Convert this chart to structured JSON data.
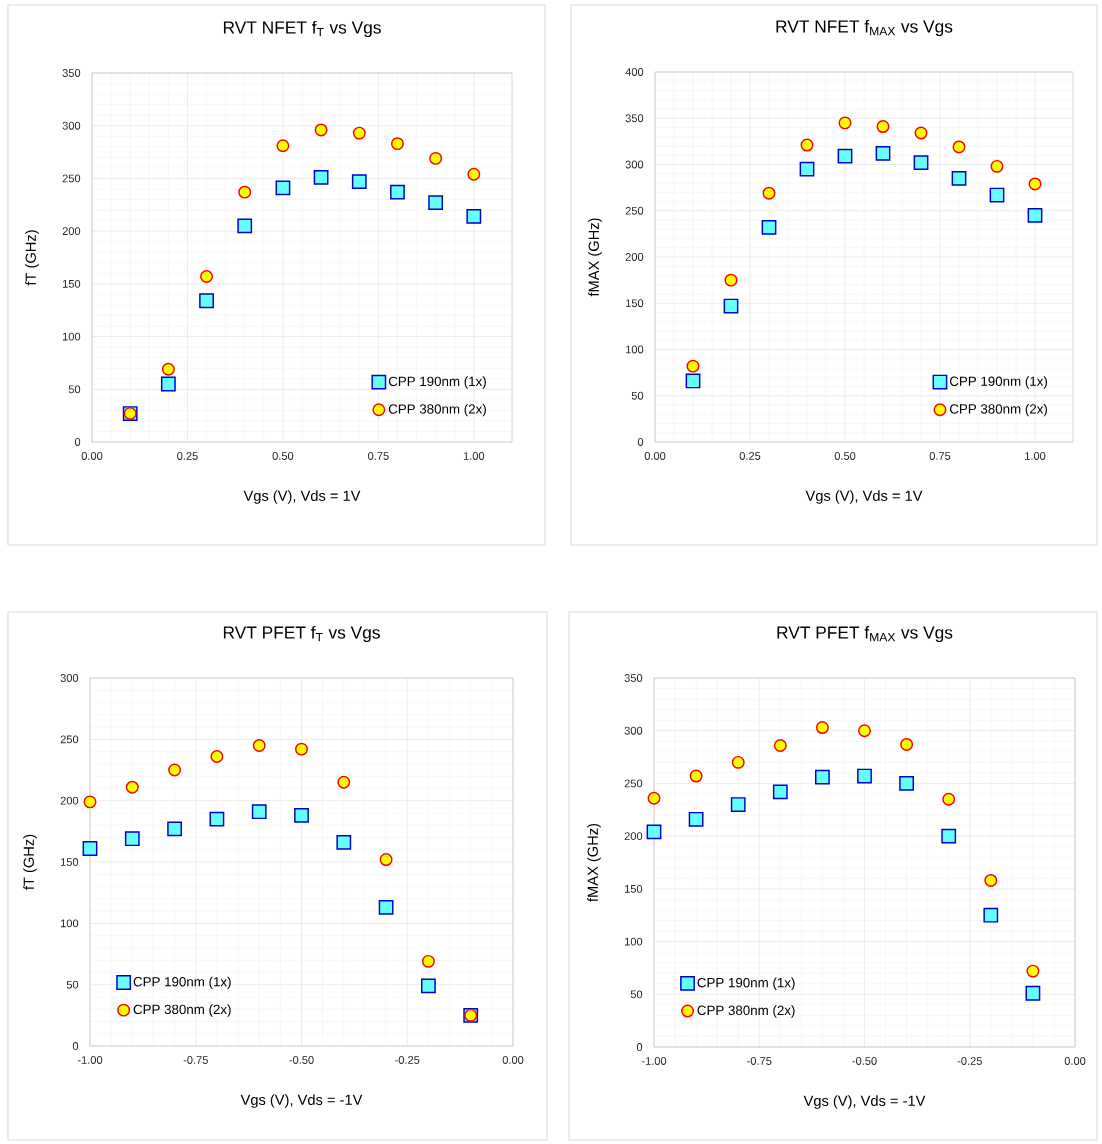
{
  "chart_data": [
    {
      "type": "scatter",
      "title": "RVT NFET f$_{T}$ vs Vgs",
      "xlabel": "Vgs (V), Vds = 1V",
      "ylabel": "fT (GHz)",
      "x": [
        0.1,
        0.2,
        0.3,
        0.4,
        0.5,
        0.6,
        0.7,
        0.8,
        0.9,
        1.0
      ],
      "series": [
        {
          "name": "CPP 190nm (1x)",
          "color": "#66ffff",
          "marker": "square",
          "values": [
            27,
            55,
            134,
            205,
            241,
            251,
            247,
            237,
            227,
            214
          ]
        },
        {
          "name": "CPP 380nm (2x)",
          "color": "#ffff00",
          "marker": "circle",
          "values": [
            27,
            69,
            157,
            237,
            281,
            296,
            293,
            283,
            269,
            254
          ]
        }
      ],
      "xlim": [
        0,
        1.1
      ],
      "xticks": [
        {
          "value": 0,
          "label": "0.00"
        },
        {
          "value": 0.25,
          "label": "0.25"
        },
        {
          "value": 0.5,
          "label": "0.50"
        },
        {
          "value": 0.75,
          "label": "0.75"
        },
        {
          "value": 1,
          "label": "1.00"
        }
      ],
      "ylim": [
        0,
        350
      ],
      "yticks": [
        0,
        50,
        100,
        150,
        200,
        250,
        300,
        350
      ],
      "grid": true,
      "legend": "bottom right"
    },
    {
      "type": "scatter",
      "title": "RVT NFET f$_{MAX}$ vs Vgs",
      "xlabel": "Vgs (V), Vds = 1V",
      "ylabel": "fMAX (GHz)",
      "x": [
        0.1,
        0.2,
        0.3,
        0.4,
        0.5,
        0.6,
        0.7,
        0.8,
        0.9,
        1.0
      ],
      "series": [
        {
          "name": "CPP 190nm (1x)",
          "color": "#66ffff",
          "marker": "square",
          "values": [
            66,
            147,
            232,
            295,
            309,
            312,
            302,
            285,
            267,
            245
          ]
        },
        {
          "name": "CPP 380nm (2x)",
          "color": "#ffff00",
          "marker": "circle",
          "values": [
            82,
            175,
            269,
            321,
            345,
            341,
            334,
            319,
            298,
            279
          ]
        }
      ],
      "xlim": [
        0,
        1.1
      ],
      "xticks": [
        {
          "value": 0,
          "label": "0.00"
        },
        {
          "value": 0.25,
          "label": "0.25"
        },
        {
          "value": 0.5,
          "label": "0.50"
        },
        {
          "value": 0.75,
          "label": "0.75"
        },
        {
          "value": 1,
          "label": "1.00"
        }
      ],
      "ylim": [
        0,
        400
      ],
      "yticks": [
        0,
        50,
        100,
        150,
        200,
        250,
        300,
        350,
        400
      ],
      "grid": true,
      "legend": "bottom right"
    },
    {
      "type": "scatter",
      "title": "RVT PFET f$_{T}$ vs Vgs",
      "xlabel": "Vgs (V), Vds = -1V",
      "ylabel": "fT (GHz)",
      "x": [
        -1.0,
        -0.9,
        -0.8,
        -0.7,
        -0.6,
        -0.5,
        -0.4,
        -0.3,
        -0.2,
        -0.1
      ],
      "series": [
        {
          "name": "CPP 190nm (1x)",
          "color": "#66ffff",
          "marker": "square",
          "values": [
            161,
            169,
            177,
            185,
            191,
            188,
            166,
            113,
            49,
            25
          ]
        },
        {
          "name": "CPP 380nm (2x)",
          "color": "#ffff00",
          "marker": "circle",
          "values": [
            199,
            211,
            225,
            236,
            245,
            242,
            215,
            152,
            69,
            25
          ]
        }
      ],
      "xlim": [
        -1,
        0
      ],
      "xticks": [
        {
          "value": -1,
          "label": "-1.00"
        },
        {
          "value": -0.75,
          "label": "-0.75"
        },
        {
          "value": -0.5,
          "label": "-0.50"
        },
        {
          "value": -0.25,
          "label": "-0.25"
        },
        {
          "value": 0,
          "label": "0.00"
        }
      ],
      "ylim": [
        0,
        300
      ],
      "yticks": [
        0,
        50,
        100,
        150,
        200,
        250,
        300
      ],
      "grid": true,
      "legend": "bottom left"
    },
    {
      "type": "scatter",
      "title": "RVT PFET f$_{MAX}$ vs Vgs",
      "xlabel": "Vgs (V), Vds = -1V",
      "ylabel": "fMAX (GHz)",
      "x": [
        -1.0,
        -0.9,
        -0.8,
        -0.7,
        -0.6,
        -0.5,
        -0.4,
        -0.3,
        -0.2,
        -0.1
      ],
      "series": [
        {
          "name": "CPP 190nm (1x)",
          "color": "#66ffff",
          "marker": "square",
          "values": [
            204,
            216,
            230,
            242,
            256,
            257,
            250,
            200,
            125,
            51
          ]
        },
        {
          "name": "CPP 380nm (2x)",
          "color": "#ffff00",
          "marker": "circle",
          "values": [
            236,
            257,
            270,
            286,
            303,
            300,
            287,
            235,
            158,
            72
          ]
        }
      ],
      "xlim": [
        -1,
        0
      ],
      "xticks": [
        {
          "value": -1,
          "label": "-1.00"
        },
        {
          "value": -0.75,
          "label": "-0.75"
        },
        {
          "value": -0.5,
          "label": "-0.50"
        },
        {
          "value": -0.25,
          "label": "-0.25"
        },
        {
          "value": 0,
          "label": "0.00"
        }
      ],
      "ylim": [
        0,
        350
      ],
      "yticks": [
        0,
        50,
        100,
        150,
        200,
        250,
        300,
        350
      ],
      "grid": true,
      "legend": "bottom left"
    }
  ]
}
